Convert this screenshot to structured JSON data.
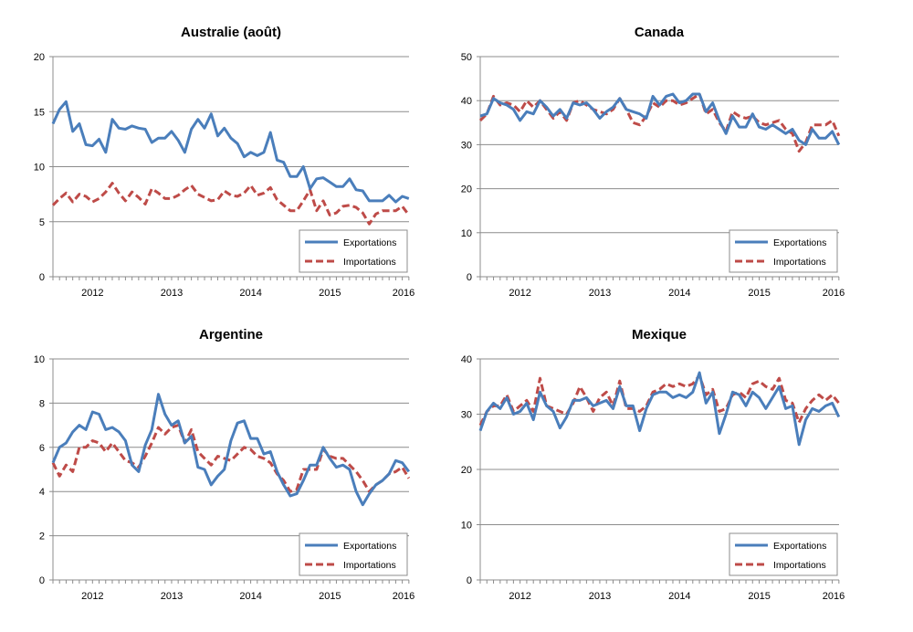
{
  "colors": {
    "exports": "#4a7ebb",
    "imports": "#be4b48",
    "grid": "#8c8c8c",
    "axis": "#8c8c8c"
  },
  "x_axis_labels": [
    "2012",
    "2013",
    "2014",
    "2015",
    "2016"
  ],
  "chart_data": [
    {
      "type": "line",
      "title": "Australie (août)",
      "ylim": [
        0,
        20
      ],
      "yticks": [
        0,
        5,
        10,
        15,
        20
      ],
      "xlim": [
        2011.5,
        2016
      ],
      "x_start": 2011.5,
      "x_step": 0.0833,
      "legend_position": "bottom-right",
      "series": [
        {
          "name": "Exportations",
          "style": "solid",
          "values": [
            13.9,
            15.2,
            15.9,
            13.2,
            13.9,
            12.0,
            11.9,
            12.5,
            11.3,
            14.3,
            13.5,
            13.4,
            13.7,
            13.5,
            13.4,
            12.2,
            12.6,
            12.6,
            13.2,
            12.4,
            11.3,
            13.4,
            14.3,
            13.5,
            14.8,
            12.8,
            13.5,
            12.6,
            12.1,
            10.9,
            11.3,
            11.0,
            11.3,
            13.1,
            10.6,
            10.4,
            9.1,
            9.1,
            10.0,
            8.0,
            8.9,
            9.0,
            8.6,
            8.2,
            8.2,
            8.9,
            7.9,
            7.8,
            6.9,
            6.9,
            6.9,
            7.4,
            6.8,
            7.3,
            7.1
          ]
        },
        {
          "name": "Importations",
          "style": "dashed",
          "values": [
            6.5,
            7.1,
            7.6,
            6.8,
            7.5,
            7.3,
            6.8,
            7.1,
            7.7,
            8.5,
            7.6,
            6.9,
            7.7,
            7.2,
            6.6,
            8.0,
            7.6,
            7.1,
            7.1,
            7.4,
            7.9,
            8.3,
            7.5,
            7.2,
            6.9,
            7.0,
            7.8,
            7.4,
            7.3,
            7.6,
            8.3,
            7.4,
            7.6,
            8.1,
            7.0,
            6.5,
            6.0,
            6.0,
            6.9,
            7.9,
            6.0,
            6.9,
            5.6,
            5.8,
            6.4,
            6.5,
            6.3,
            5.8,
            4.8,
            5.7,
            6.0,
            6.0,
            6.0,
            6.4,
            5.6
          ]
        }
      ]
    },
    {
      "type": "line",
      "title": "Canada",
      "ylim": [
        0,
        50
      ],
      "yticks": [
        0,
        10,
        20,
        30,
        40,
        50
      ],
      "xlim": [
        2011.5,
        2016
      ],
      "x_start": 2011.5,
      "x_step": 0.0833,
      "legend_position": "bottom-right",
      "series": [
        {
          "name": "Exportations",
          "style": "solid",
          "values": [
            36.5,
            37.0,
            40.5,
            39.5,
            39.0,
            38.0,
            35.5,
            37.5,
            37.0,
            40.0,
            38.5,
            36.5,
            38.0,
            36.0,
            39.5,
            39.0,
            39.5,
            38.0,
            36.0,
            37.5,
            38.5,
            40.5,
            38.0,
            37.5,
            37.0,
            36.0,
            41.0,
            39.0,
            41.0,
            41.5,
            39.5,
            40.0,
            41.5,
            41.5,
            37.5,
            39.5,
            35.5,
            32.5,
            36.5,
            34.0,
            34.0,
            37.0,
            34.0,
            33.5,
            34.5,
            33.5,
            32.5,
            33.5,
            31.0,
            30.0,
            33.5,
            31.5,
            31.5,
            33.0,
            30.0
          ]
        },
        {
          "name": "Importations",
          "style": "dashed",
          "values": [
            35.5,
            37.0,
            41.0,
            39.0,
            39.5,
            39.0,
            37.5,
            40.0,
            38.5,
            40.0,
            38.0,
            36.0,
            37.5,
            35.5,
            39.5,
            40.0,
            39.0,
            38.0,
            37.5,
            37.0,
            38.0,
            40.5,
            38.0,
            35.0,
            34.5,
            36.5,
            39.5,
            38.5,
            40.0,
            40.0,
            39.0,
            39.5,
            40.5,
            41.5,
            37.0,
            38.0,
            35.0,
            33.0,
            37.5,
            36.5,
            36.0,
            36.5,
            35.0,
            34.5,
            35.0,
            35.5,
            33.5,
            32.5,
            28.5,
            30.5,
            34.5,
            34.5,
            34.5,
            35.5,
            32.0
          ]
        }
      ]
    },
    {
      "type": "line",
      "title": "Argentine",
      "ylim": [
        0,
        10
      ],
      "yticks": [
        0,
        2,
        4,
        6,
        8,
        10
      ],
      "xlim": [
        2011.5,
        2016
      ],
      "x_start": 2011.5,
      "x_step": 0.0833,
      "legend_position": "bottom-right",
      "series": [
        {
          "name": "Exportations",
          "style": "solid",
          "values": [
            5.3,
            6.0,
            6.2,
            6.7,
            7.0,
            6.8,
            7.6,
            7.5,
            6.8,
            6.9,
            6.7,
            6.3,
            5.2,
            4.9,
            6.1,
            6.8,
            8.4,
            7.5,
            7.0,
            7.2,
            6.2,
            6.5,
            5.1,
            5.0,
            4.3,
            4.7,
            5.0,
            6.3,
            7.1,
            7.2,
            6.4,
            6.4,
            5.7,
            5.8,
            4.9,
            4.3,
            3.8,
            3.9,
            4.5,
            5.2,
            5.2,
            6.0,
            5.5,
            5.1,
            5.2,
            5.0,
            4.0,
            3.4,
            3.9,
            4.3,
            4.5,
            4.8,
            5.4,
            5.3,
            4.9
          ]
        },
        {
          "name": "Importations",
          "style": "dashed",
          "values": [
            5.3,
            4.7,
            5.2,
            4.9,
            6.0,
            6.0,
            6.3,
            6.2,
            5.8,
            6.2,
            5.8,
            5.4,
            5.3,
            5.1,
            5.6,
            6.2,
            6.9,
            6.6,
            6.9,
            7.0,
            6.2,
            6.8,
            5.8,
            5.5,
            5.2,
            5.6,
            5.5,
            5.4,
            5.7,
            6.0,
            5.9,
            5.6,
            5.5,
            5.3,
            4.8,
            4.5,
            4.0,
            4.1,
            5.0,
            5.0,
            5.0,
            5.9,
            5.6,
            5.5,
            5.5,
            5.2,
            4.9,
            4.5,
            4.0,
            4.3,
            4.5,
            4.8,
            4.9,
            5.1,
            4.6
          ]
        }
      ]
    },
    {
      "type": "line",
      "title": "Mexique",
      "ylim": [
        0,
        40
      ],
      "yticks": [
        0,
        10,
        20,
        30,
        40
      ],
      "xlim": [
        2011.5,
        2016
      ],
      "x_start": 2011.5,
      "x_step": 0.0833,
      "legend_position": "bottom-right",
      "series": [
        {
          "name": "Exportations",
          "style": "solid",
          "values": [
            27.0,
            30.5,
            32.0,
            31.0,
            33.0,
            30.0,
            30.5,
            32.0,
            29.0,
            34.0,
            31.5,
            30.5,
            27.5,
            29.5,
            32.5,
            32.5,
            33.0,
            31.5,
            32.0,
            32.5,
            31.0,
            35.0,
            31.5,
            31.5,
            27.0,
            31.0,
            33.5,
            34.0,
            34.0,
            33.0,
            33.5,
            33.0,
            34.0,
            37.5,
            32.0,
            34.0,
            26.5,
            30.0,
            34.0,
            33.5,
            31.5,
            34.0,
            33.0,
            31.0,
            33.0,
            35.0,
            31.0,
            31.5,
            24.5,
            29.0,
            31.0,
            30.5,
            31.5,
            32.0,
            29.5
          ]
        },
        {
          "name": "Importations",
          "style": "dashed",
          "values": [
            28.0,
            30.5,
            31.5,
            31.5,
            33.5,
            30.5,
            31.5,
            32.5,
            30.5,
            36.5,
            31.5,
            31.0,
            30.5,
            30.0,
            32.0,
            35.0,
            33.0,
            30.5,
            33.0,
            34.0,
            31.5,
            36.0,
            31.0,
            31.0,
            30.5,
            31.5,
            34.0,
            34.5,
            35.5,
            35.0,
            35.5,
            35.0,
            35.5,
            37.0,
            33.5,
            34.5,
            30.5,
            31.0,
            33.5,
            34.0,
            33.0,
            35.5,
            36.0,
            35.0,
            34.5,
            36.5,
            32.5,
            32.0,
            28.5,
            31.0,
            32.5,
            33.5,
            32.5,
            33.5,
            32.0
          ]
        }
      ]
    }
  ]
}
